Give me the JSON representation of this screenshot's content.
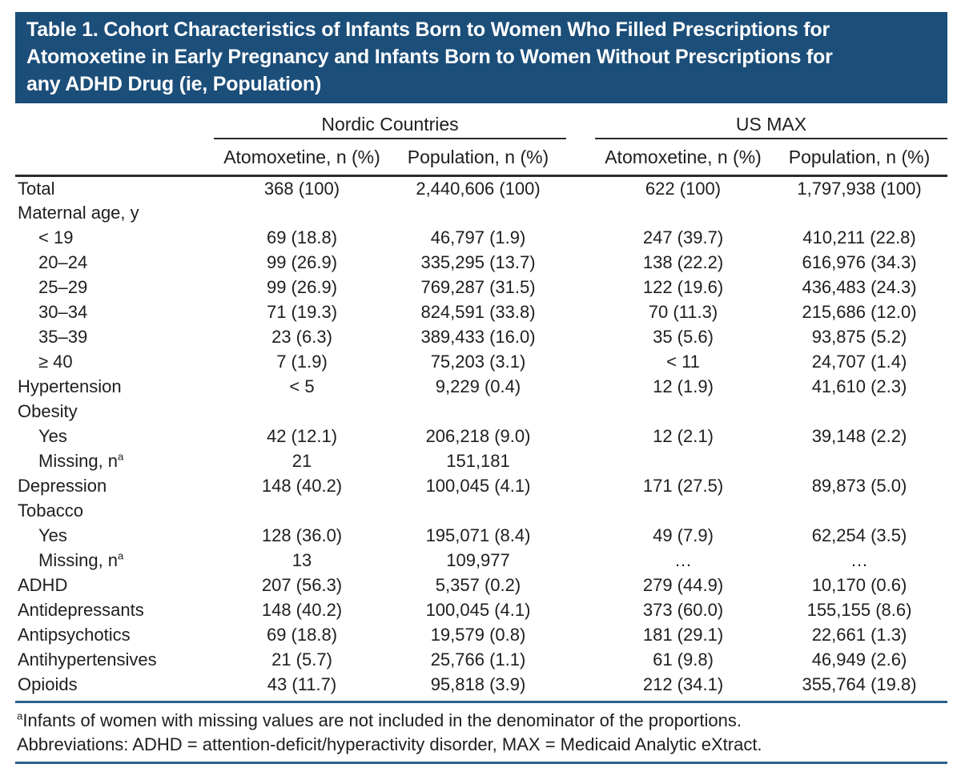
{
  "table": {
    "title_lines": [
      "Table 1. Cohort Characteristics of Infants Born to Women Who Filled Prescriptions for",
      "Atomoxetine in Early Pregnancy and Infants Born to Women Without Prescriptions for",
      "any ADHD Drug (ie, Population)"
    ],
    "col_groups": [
      {
        "label": "Nordic Countries"
      },
      {
        "label": "US MAX"
      }
    ],
    "sub_headers": [
      "Atomoxetine, n (%)",
      "Population, n (%)",
      "Atomoxetine, n (%)",
      "Population, n (%)"
    ],
    "rows": [
      {
        "label": "Total",
        "sup": "",
        "indent": false,
        "values": [
          "368 (100)",
          "2,440,606 (100)",
          "622 (100)",
          "1,797,938 (100)"
        ]
      },
      {
        "label": "Maternal age, y",
        "sup": "",
        "indent": false,
        "values": [
          "",
          "",
          "",
          ""
        ]
      },
      {
        "label": "< 19",
        "sup": "",
        "indent": true,
        "values": [
          "69 (18.8)",
          "46,797 (1.9)",
          "247 (39.7)",
          "410,211 (22.8)"
        ]
      },
      {
        "label": "20–24",
        "sup": "",
        "indent": true,
        "values": [
          "99 (26.9)",
          "335,295 (13.7)",
          "138 (22.2)",
          "616,976 (34.3)"
        ]
      },
      {
        "label": "25–29",
        "sup": "",
        "indent": true,
        "values": [
          "99 (26.9)",
          "769,287 (31.5)",
          "122 (19.6)",
          "436,483 (24.3)"
        ]
      },
      {
        "label": "30–34",
        "sup": "",
        "indent": true,
        "values": [
          "71 (19.3)",
          "824,591 (33.8)",
          "70 (11.3)",
          "215,686 (12.0)"
        ]
      },
      {
        "label": "35–39",
        "sup": "",
        "indent": true,
        "values": [
          "23 (6.3)",
          "389,433 (16.0)",
          "35 (5.6)",
          "93,875 (5.2)"
        ]
      },
      {
        "label": "≥ 40",
        "sup": "",
        "indent": true,
        "values": [
          "7 (1.9)",
          "75,203 (3.1)",
          "< 11",
          "24,707 (1.4)"
        ]
      },
      {
        "label": "Hypertension",
        "sup": "",
        "indent": false,
        "values": [
          "< 5",
          "9,229 (0.4)",
          "12 (1.9)",
          "41,610 (2.3)"
        ]
      },
      {
        "label": "Obesity",
        "sup": "",
        "indent": false,
        "values": [
          "",
          "",
          "",
          ""
        ]
      },
      {
        "label": "Yes",
        "sup": "",
        "indent": true,
        "values": [
          "42 (12.1)",
          "206,218 (9.0)",
          "12 (2.1)",
          "39,148 (2.2)"
        ]
      },
      {
        "label": "Missing, n",
        "sup": "a",
        "indent": true,
        "values": [
          "21",
          "151,181",
          "",
          ""
        ]
      },
      {
        "label": "Depression",
        "sup": "",
        "indent": false,
        "values": [
          "148 (40.2)",
          "100,045 (4.1)",
          "171 (27.5)",
          "89,873 (5.0)"
        ]
      },
      {
        "label": "Tobacco",
        "sup": "",
        "indent": false,
        "values": [
          "",
          "",
          "",
          ""
        ]
      },
      {
        "label": "Yes",
        "sup": "",
        "indent": true,
        "values": [
          "128 (36.0)",
          "195,071 (8.4)",
          "49 (7.9)",
          "62,254 (3.5)"
        ]
      },
      {
        "label": "Missing, n",
        "sup": "a",
        "indent": true,
        "values": [
          "13",
          "109,977",
          "…",
          "…"
        ]
      },
      {
        "label": "ADHD",
        "sup": "",
        "indent": false,
        "values": [
          "207 (56.3)",
          "5,357 (0.2)",
          "279 (44.9)",
          "10,170 (0.6)"
        ]
      },
      {
        "label": "Antidepressants",
        "sup": "",
        "indent": false,
        "values": [
          "148 (40.2)",
          "100,045 (4.1)",
          "373 (60.0)",
          "155,155 (8.6)"
        ]
      },
      {
        "label": "Antipsychotics",
        "sup": "",
        "indent": false,
        "values": [
          "69 (18.8)",
          "19,579 (0.8)",
          "181 (29.1)",
          "22,661 (1.3)"
        ]
      },
      {
        "label": "Antihypertensives",
        "sup": "",
        "indent": false,
        "values": [
          "21 (5.7)",
          "25,766 (1.1)",
          "61 (9.8)",
          "46,949 (2.6)"
        ]
      },
      {
        "label": "Opioids",
        "sup": "",
        "indent": false,
        "values": [
          "43 (11.7)",
          "95,818 (3.9)",
          "212 (34.1)",
          "355,764 (19.8)"
        ]
      }
    ],
    "footnotes": [
      {
        "sup": "a",
        "text": "Infants of women with missing values are not included in the denominator of the proportions."
      },
      {
        "sup": "",
        "text": "Abbreviations: ADHD = attention-deficit/hyperactivity disorder, MAX = Medicaid Analytic eXtract."
      }
    ],
    "colors": {
      "header_bg": "#1b4e79",
      "rule_dark": "#2b2b2b",
      "rule_blue": "#2c6090",
      "text": "#1e1e1e"
    }
  }
}
